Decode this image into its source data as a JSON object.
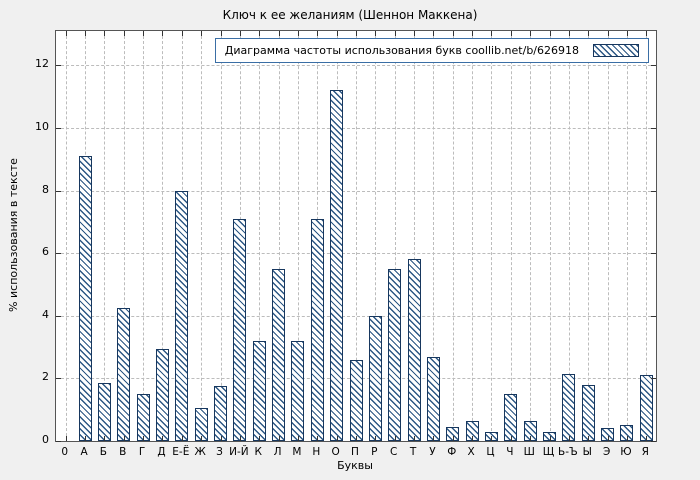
{
  "chart_data": {
    "type": "bar",
    "title": "Ключ к ее желаниям (Шеннон Маккена)",
    "xlabel": "Буквы",
    "ylabel": "% использования в тексте",
    "legend": {
      "label": "Диаграмма частоты использования букв coollib.net/b/626918",
      "position": "top-right"
    },
    "grid": true,
    "ylim": [
      0,
      13.1
    ],
    "yticks": [
      0,
      2,
      4,
      6,
      8,
      10,
      12
    ],
    "categories": [
      "0",
      "А",
      "Б",
      "В",
      "Г",
      "Д",
      "Е-Ё",
      "Ж",
      "З",
      "И-Й",
      "К",
      "Л",
      "М",
      "Н",
      "О",
      "П",
      "Р",
      "С",
      "Т",
      "У",
      "Ф",
      "Х",
      "Ц",
      "Ч",
      "Ш",
      "Щ",
      "Ь-Ъ",
      "Ы",
      "Э",
      "Ю",
      "Я"
    ],
    "values": [
      0,
      9.1,
      1.85,
      4.25,
      1.5,
      2.95,
      8.0,
      1.05,
      1.75,
      7.1,
      3.2,
      5.5,
      3.2,
      7.1,
      11.2,
      2.6,
      4.0,
      5.5,
      5.8,
      2.7,
      0.45,
      0.65,
      0.3,
      1.5,
      0.65,
      0.3,
      2.15,
      1.8,
      0.4,
      0.5,
      2.1
    ],
    "colors": {
      "bar_outline": "#17375e",
      "bar_hatch": "#2c5784",
      "figure_background": "#f0f0f0",
      "plot_background": "#ffffff",
      "gridline": "#bcbcbc"
    },
    "bar_style": "diagonal-hatch"
  }
}
